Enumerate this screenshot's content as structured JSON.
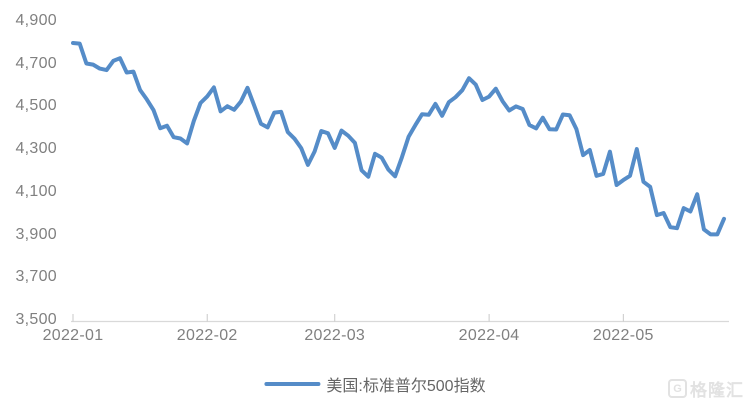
{
  "chart_data": {
    "type": "line",
    "title": "",
    "xlabel": "",
    "ylabel": "",
    "ylim": [
      3500,
      4900
    ],
    "grid": "off",
    "legend_position": "bottom-center",
    "line_color": "#558cc8",
    "x": [
      "2022-01-03",
      "2022-01-04",
      "2022-01-05",
      "2022-01-06",
      "2022-01-07",
      "2022-01-10",
      "2022-01-11",
      "2022-01-12",
      "2022-01-13",
      "2022-01-14",
      "2022-01-18",
      "2022-01-19",
      "2022-01-20",
      "2022-01-21",
      "2022-01-24",
      "2022-01-25",
      "2022-01-26",
      "2022-01-27",
      "2022-01-28",
      "2022-01-31",
      "2022-02-01",
      "2022-02-02",
      "2022-02-03",
      "2022-02-04",
      "2022-02-07",
      "2022-02-08",
      "2022-02-09",
      "2022-02-10",
      "2022-02-11",
      "2022-02-14",
      "2022-02-15",
      "2022-02-16",
      "2022-02-17",
      "2022-02-18",
      "2022-02-22",
      "2022-02-23",
      "2022-02-24",
      "2022-02-25",
      "2022-02-28",
      "2022-03-01",
      "2022-03-02",
      "2022-03-03",
      "2022-03-04",
      "2022-03-07",
      "2022-03-08",
      "2022-03-09",
      "2022-03-10",
      "2022-03-11",
      "2022-03-14",
      "2022-03-15",
      "2022-03-16",
      "2022-03-17",
      "2022-03-18",
      "2022-03-21",
      "2022-03-22",
      "2022-03-23",
      "2022-03-24",
      "2022-03-25",
      "2022-03-28",
      "2022-03-29",
      "2022-03-30",
      "2022-03-31",
      "2022-04-01",
      "2022-04-04",
      "2022-04-05",
      "2022-04-06",
      "2022-04-07",
      "2022-04-08",
      "2022-04-11",
      "2022-04-12",
      "2022-04-13",
      "2022-04-14",
      "2022-04-18",
      "2022-04-19",
      "2022-04-20",
      "2022-04-21",
      "2022-04-22",
      "2022-04-25",
      "2022-04-26",
      "2022-04-27",
      "2022-04-28",
      "2022-04-29",
      "2022-05-02",
      "2022-05-03",
      "2022-05-04",
      "2022-05-05",
      "2022-05-06",
      "2022-05-09",
      "2022-05-10",
      "2022-05-11",
      "2022-05-12",
      "2022-05-13",
      "2022-05-16",
      "2022-05-17",
      "2022-05-18",
      "2022-05-19",
      "2022-05-20",
      "2022-05-23"
    ],
    "series": [
      {
        "name": "美国:标准普尔500指数",
        "values": [
          4797,
          4794,
          4701,
          4696,
          4677,
          4670,
          4713,
          4726,
          4659,
          4663,
          4577,
          4533,
          4483,
          4398,
          4410,
          4356,
          4350,
          4327,
          4432,
          4516,
          4547,
          4589,
          4477,
          4501,
          4484,
          4522,
          4587,
          4504,
          4419,
          4402,
          4471,
          4475,
          4380,
          4349,
          4305,
          4226,
          4289,
          4385,
          4374,
          4306,
          4387,
          4363,
          4329,
          4201,
          4171,
          4278,
          4260,
          4204,
          4173,
          4262,
          4358,
          4412,
          4463,
          4461,
          4512,
          4456,
          4520,
          4543,
          4576,
          4632,
          4602,
          4530,
          4546,
          4583,
          4525,
          4481,
          4500,
          4488,
          4413,
          4397,
          4447,
          4393,
          4392,
          4462,
          4459,
          4394,
          4272,
          4296,
          4175,
          4184,
          4288,
          4132,
          4155,
          4175,
          4300,
          4147,
          4123,
          3991,
          4001,
          3935,
          3930,
          4024,
          4008,
          4089,
          3924,
          3901,
          3901,
          3974
        ]
      }
    ],
    "y_ticks": [
      {
        "label": "4,900",
        "value": 4900
      },
      {
        "label": "4,700",
        "value": 4700
      },
      {
        "label": "4,500",
        "value": 4500
      },
      {
        "label": "4,300",
        "value": 4300
      },
      {
        "label": "4,100",
        "value": 4100
      },
      {
        "label": "3,900",
        "value": 3900
      },
      {
        "label": "3,700",
        "value": 3700
      },
      {
        "label": "3,500",
        "value": 3500
      }
    ],
    "x_ticks": [
      {
        "label": "2022-01",
        "index": 0
      },
      {
        "label": "2022-02",
        "index": 20
      },
      {
        "label": "2022-03",
        "index": 39
      },
      {
        "label": "2022-04",
        "index": 62
      },
      {
        "label": "2022-05",
        "index": 82
      }
    ]
  },
  "legend": {
    "label": "美国:标准普尔500指数"
  },
  "watermark": {
    "text": "格隆汇",
    "icon_letter": "G"
  },
  "colors": {
    "line": "#558cc8",
    "axis_text": "#808080",
    "legend_text": "#666666",
    "axis_line": "#d9d9d9",
    "tick_mark": "#c9c9c9",
    "watermark": "#e2e2e2",
    "background": "#ffffff"
  }
}
